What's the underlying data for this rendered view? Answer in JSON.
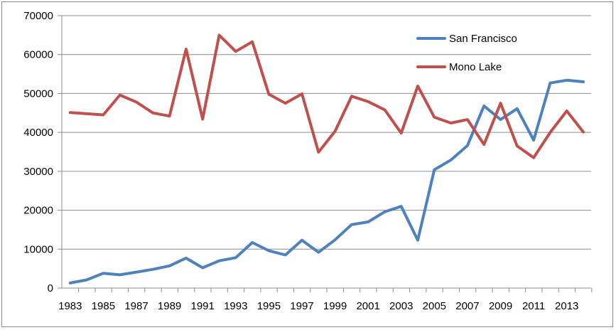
{
  "chart_data": {
    "type": "line",
    "title": "",
    "xlabel": "",
    "ylabel": "",
    "ylim": [
      0,
      70000
    ],
    "yticks": [
      0,
      10000,
      20000,
      30000,
      40000,
      50000,
      60000,
      70000
    ],
    "ytick_labels": [
      "0",
      "10000",
      "20000",
      "30000",
      "40000",
      "50000",
      "60000",
      "70000"
    ],
    "x": [
      1983,
      1984,
      1985,
      1986,
      1987,
      1988,
      1989,
      1990,
      1991,
      1992,
      1993,
      1994,
      1995,
      1996,
      1997,
      1998,
      1999,
      2000,
      2001,
      2002,
      2003,
      2004,
      2005,
      2006,
      2007,
      2008,
      2009,
      2010,
      2011,
      2012,
      2013,
      2014
    ],
    "xtick_labels": [
      "1983",
      "1985",
      "1987",
      "1989",
      "1991",
      "1993",
      "1995",
      "1997",
      "1999",
      "2001",
      "2003",
      "2005",
      "2007",
      "2009",
      "2011",
      "2013"
    ],
    "grid": true,
    "legend_position": "top-right",
    "series": [
      {
        "name": "San Francisco",
        "color": "#4f81bd",
        "values": [
          1300,
          2100,
          3800,
          3400,
          4100,
          4800,
          5700,
          7700,
          5200,
          7000,
          7800,
          11700,
          9600,
          8500,
          12300,
          9200,
          12400,
          16300,
          17000,
          19600,
          21000,
          12300,
          30400,
          32900,
          36600,
          46800,
          43300,
          46100,
          38000,
          52700,
          53400,
          53000
        ]
      },
      {
        "name": "Mono Lake",
        "color": "#c0504d",
        "values": [
          45100,
          44800,
          44500,
          49600,
          47800,
          45000,
          44200,
          61400,
          43400,
          65000,
          60800,
          63300,
          49800,
          47500,
          49900,
          34900,
          40300,
          49300,
          47900,
          45800,
          39800,
          51900,
          43900,
          42400,
          43300,
          36900,
          47500,
          36500,
          33500,
          40000,
          45500,
          40100
        ]
      }
    ]
  }
}
